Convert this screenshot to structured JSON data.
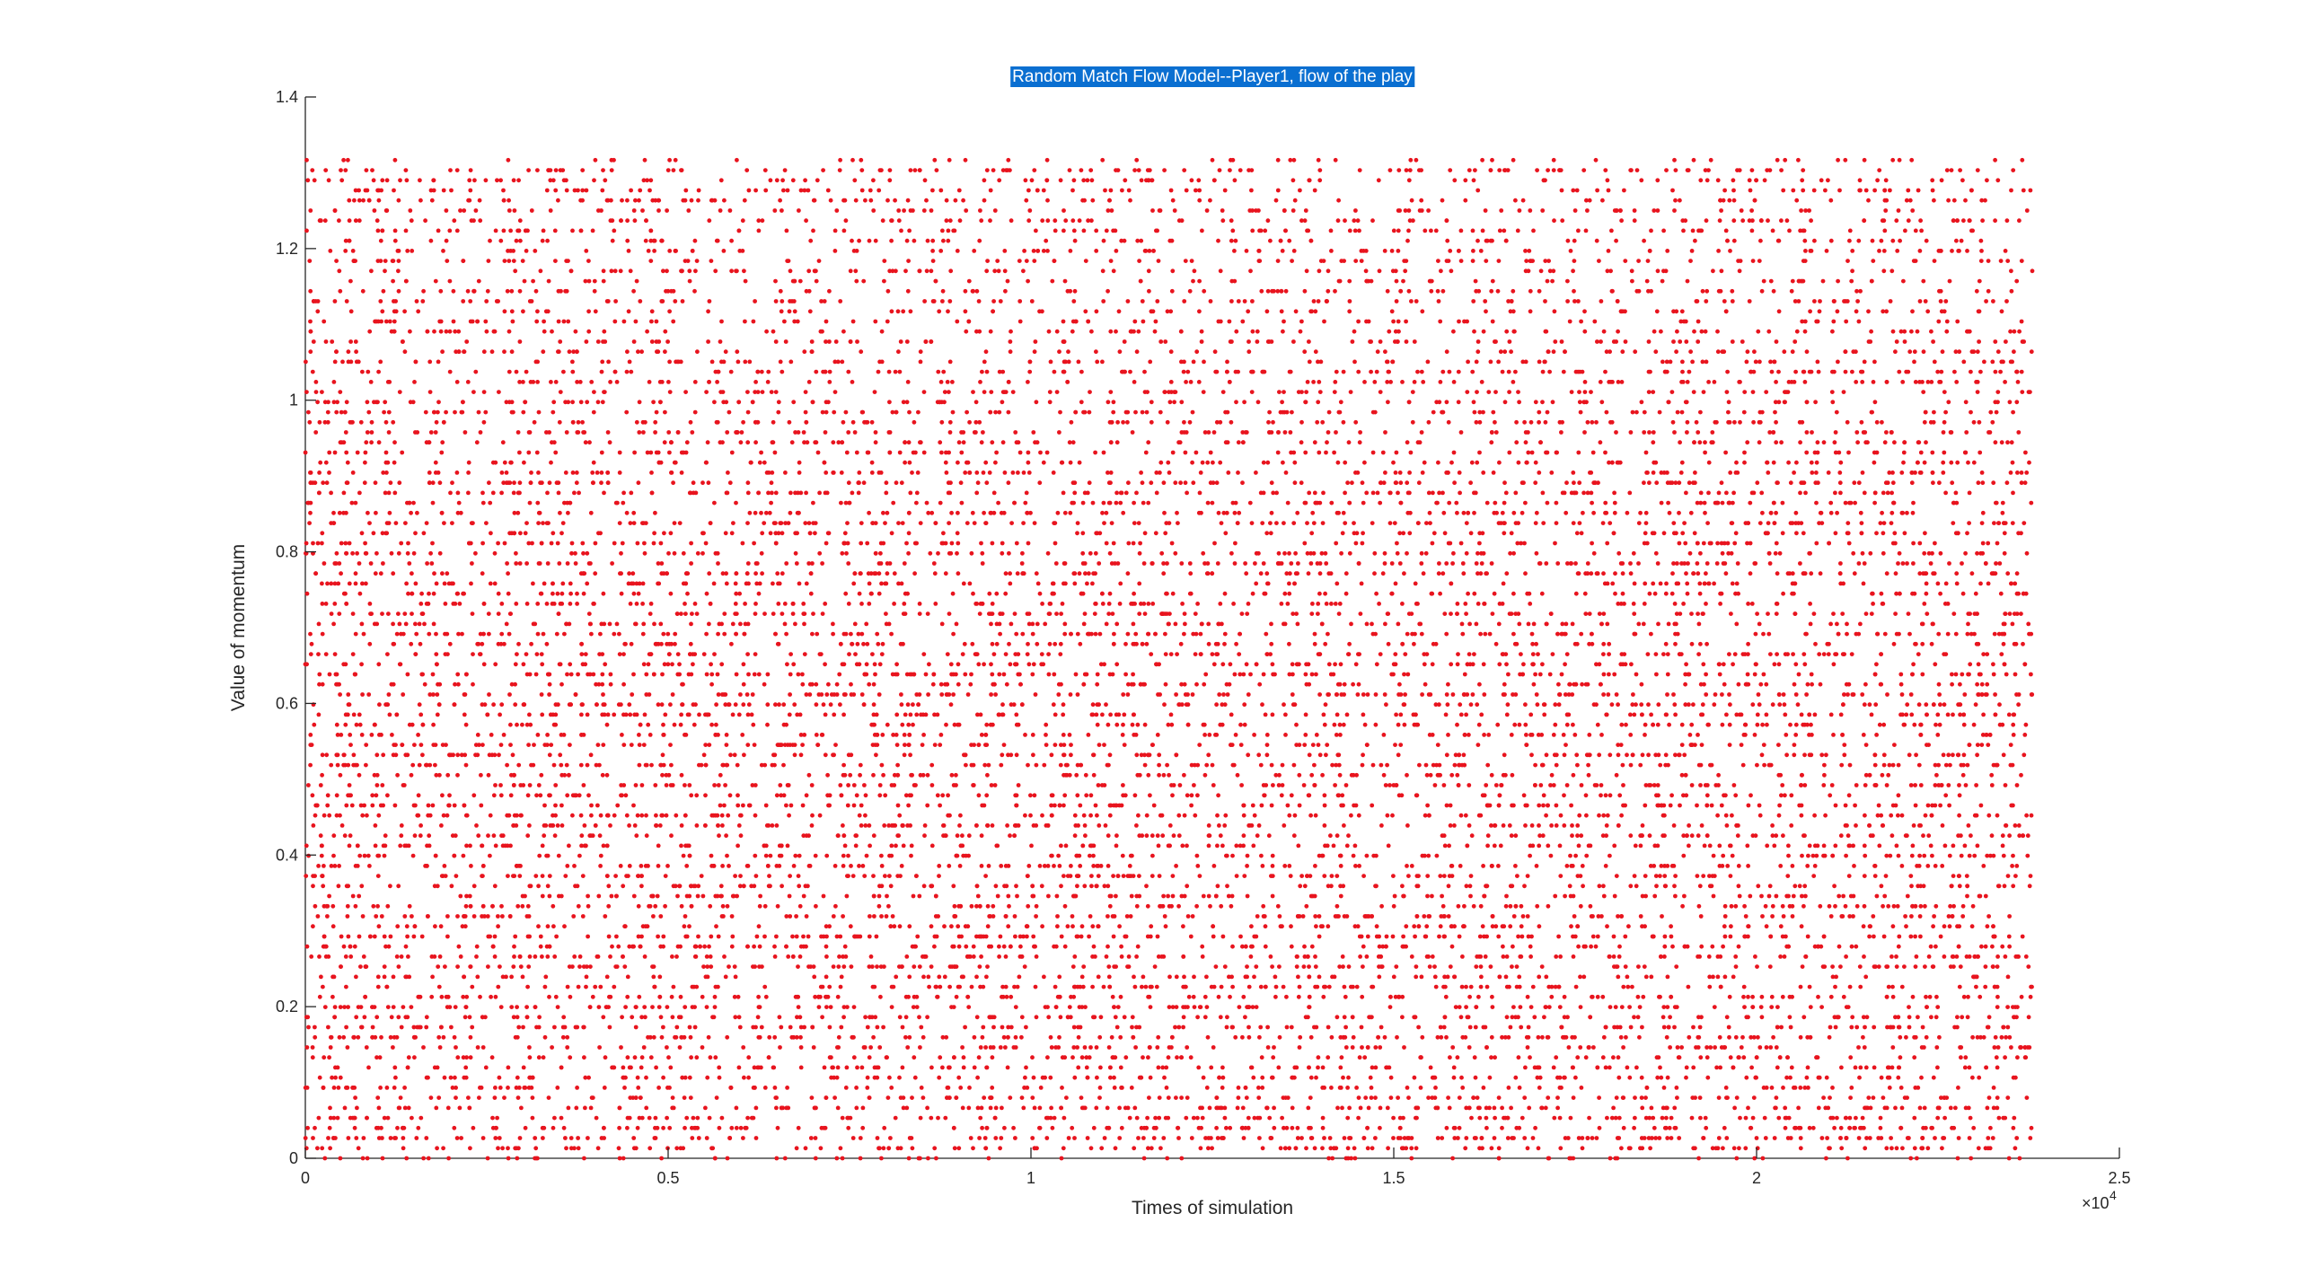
{
  "chart_data": {
    "type": "scatter",
    "title": "Random Match Flow Model--Player1, flow of the play",
    "xlabel": "Times of simulation",
    "ylabel": "Value of momentum",
    "xlim": [
      0,
      25000
    ],
    "ylim": [
      0,
      1.4
    ],
    "x_ticks": [
      0,
      5000,
      10000,
      15000,
      20000,
      25000
    ],
    "x_tick_labels": [
      "0",
      "0.5",
      "1",
      "1.5",
      "2",
      "2.5"
    ],
    "x_exponent_label": {
      "base": "×10",
      "power": "4"
    },
    "y_ticks": [
      0,
      0.2,
      0.4,
      0.6,
      0.8,
      1.0,
      1.2,
      1.4
    ],
    "y_tick_labels": [
      "0",
      "0.2",
      "0.4",
      "0.6",
      "0.8",
      "1",
      "1.2",
      "1.4"
    ],
    "series": [
      {
        "marker": "point",
        "color": "#e8141e",
        "x_range": [
          0,
          23800
        ],
        "y_range": [
          0,
          1.32
        ],
        "y_step": 0.0133,
        "n_points_approx": 12000,
        "distribution": "dense uniform scatter across the full x range; densest between 0.4 and 0.9, sparser near 1.3"
      }
    ],
    "grid": false,
    "legend": "none",
    "title_highlight_color": "#0a6fd1",
    "axis_color": "#262626"
  }
}
